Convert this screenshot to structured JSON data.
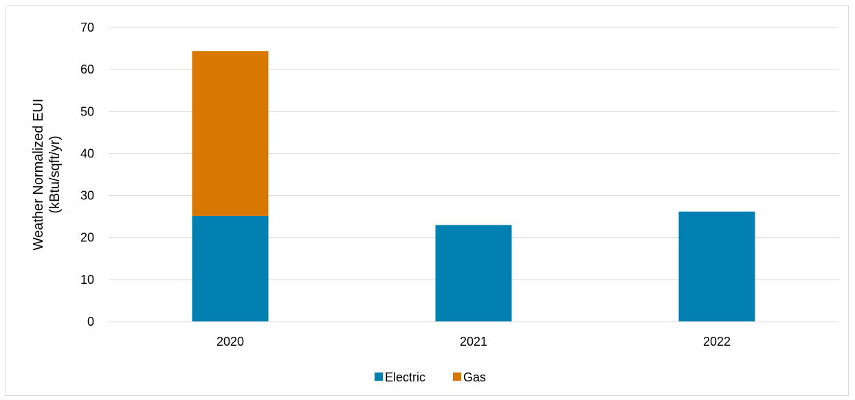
{
  "chart_data": {
    "type": "bar",
    "stacked": true,
    "categories": [
      "2020",
      "2021",
      "2022"
    ],
    "series": [
      {
        "name": "Electric",
        "values": [
          25.2,
          23.0,
          26.2
        ],
        "color": "#0080b0"
      },
      {
        "name": "Gas",
        "values": [
          39.2,
          0,
          0
        ],
        "color": "#d97800"
      }
    ],
    "title": "",
    "xlabel": "",
    "ylabel": [
      "Weather Normalized EUI",
      "(kBtu/sqft/yr)"
    ],
    "ylim": [
      0,
      70
    ],
    "yticks": [
      0,
      10,
      20,
      30,
      40,
      50,
      60,
      70
    ],
    "grid": true,
    "legend_position": "bottom-center"
  }
}
